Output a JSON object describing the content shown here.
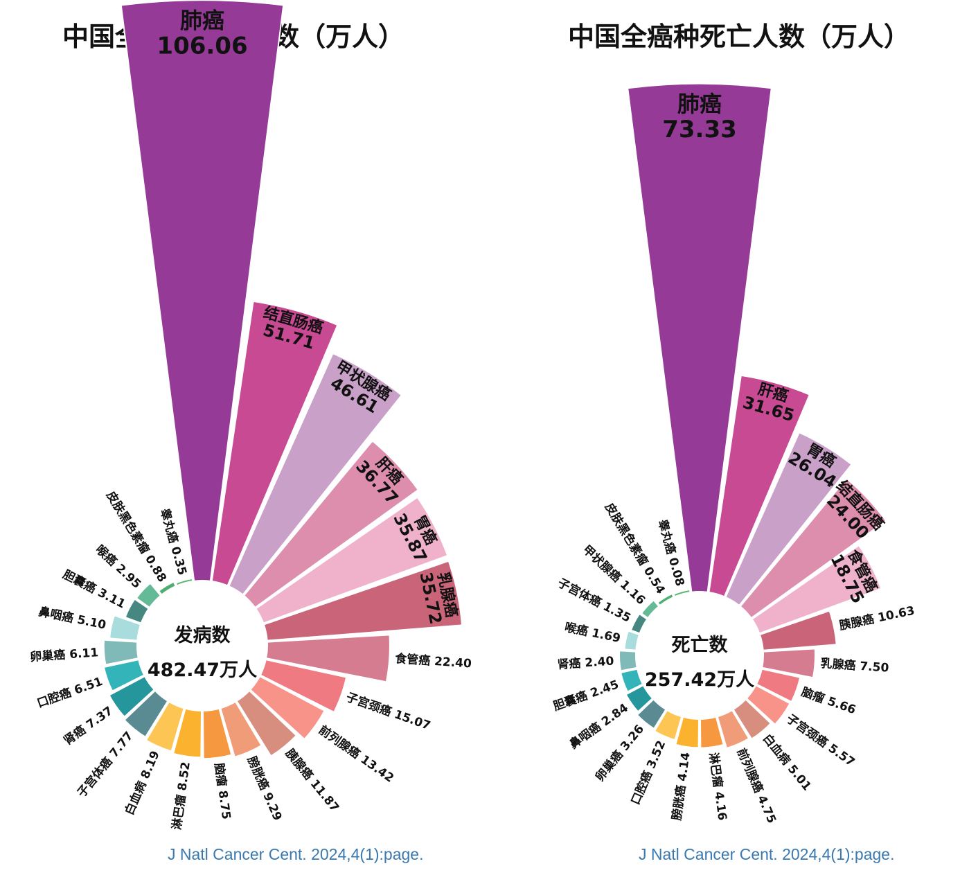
{
  "chart_data": [
    {
      "type": "polar-bar",
      "title": "中国全癌种发病人数（万人）",
      "center_label": "发病数",
      "center_total": "482.47万人",
      "source": "J Natl Cancer Cent. 2024,4(1):page.",
      "categories": [
        "肺癌",
        "结直肠癌",
        "甲状腺癌",
        "肝癌",
        "胃癌",
        "乳腺癌",
        "食管癌",
        "子宫颈癌",
        "前列腺癌",
        "胰腺癌",
        "膀胱癌",
        "脑瘤",
        "淋巴瘤",
        "白血病",
        "子宫体癌",
        "肾癌",
        "口腔癌",
        "卵巢癌",
        "鼻咽癌",
        "胆囊癌",
        "喉癌",
        "皮肤黑色素瘤",
        "睾丸癌"
      ],
      "values": [
        106.06,
        51.71,
        46.61,
        36.77,
        35.87,
        35.72,
        22.4,
        15.07,
        13.42,
        11.87,
        9.29,
        8.75,
        8.52,
        8.19,
        7.77,
        7.37,
        6.51,
        6.11,
        5.1,
        3.11,
        2.95,
        0.88,
        0.35
      ],
      "value_labels": [
        "106.06",
        "51.71",
        "46.61",
        "36.77",
        "35.87",
        "35.72",
        "22.40",
        "15.07",
        "13.42",
        "11.87",
        "9.29",
        "8.75",
        "8.52",
        "8.19",
        "7.77",
        "7.37",
        "6.51",
        "6.11",
        "5.10",
        "3.11",
        "2.95",
        "0.88",
        "0.35"
      ],
      "colors": [
        "#953a96",
        "#c84a92",
        "#c9a0c8",
        "#dd8eac",
        "#f0b2cb",
        "#c96479",
        "#d67c90",
        "#f07a82",
        "#f8938a",
        "#d78e7e",
        "#f19c78",
        "#f59840",
        "#fbb32f",
        "#fdc554",
        "#5a8b93",
        "#26969d",
        "#33b4b9",
        "#7fb9b8",
        "#a8dcdd",
        "#468782",
        "#64b996",
        "#4fae72",
        "#59b971"
      ]
    },
    {
      "type": "polar-bar",
      "title": "中国全癌种死亡人数（万人）",
      "center_label": "死亡数",
      "center_total": "257.42万人",
      "source": "J Natl Cancer Cent. 2024,4(1):page.",
      "categories": [
        "肺癌",
        "肝癌",
        "胃癌",
        "结直肠癌",
        "食管癌",
        "胰腺癌",
        "乳腺癌",
        "脑瘤",
        "子宫颈癌",
        "白血病",
        "前列腺癌",
        "淋巴瘤",
        "膀胱癌",
        "口腔癌",
        "卵巢癌",
        "鼻咽癌",
        "胆囊癌",
        "肾癌",
        "喉癌",
        "子宫体癌",
        "甲状腺癌",
        "皮肤黑色素瘤",
        "睾丸癌"
      ],
      "values": [
        73.33,
        31.65,
        26.04,
        24.0,
        18.75,
        10.63,
        7.5,
        5.66,
        5.57,
        5.01,
        4.75,
        4.16,
        4.14,
        3.52,
        3.26,
        2.84,
        2.45,
        2.4,
        1.69,
        1.35,
        1.16,
        0.54,
        0.08
      ],
      "value_labels": [
        "73.33",
        "31.65",
        "26.04",
        "24.00",
        "18.75",
        "10.63",
        "7.50",
        "5.66",
        "5.57",
        "5.01",
        "4.75",
        "4.16",
        "4.14",
        "3.52",
        "3.26",
        "2.84",
        "2.45",
        "2.40",
        "1.69",
        "1.35",
        "1.16",
        "0.54",
        "0.08"
      ],
      "colors": [
        "#953a96",
        "#c84a92",
        "#c9a0c8",
        "#dd8eac",
        "#f0b2cb",
        "#c96479",
        "#d67c90",
        "#f07a82",
        "#f8938a",
        "#d78e7e",
        "#f19c78",
        "#f59840",
        "#fbb32f",
        "#fdc554",
        "#5a8b93",
        "#26969d",
        "#33b4b9",
        "#7fb9b8",
        "#a8dcdd",
        "#468782",
        "#64b996",
        "#4fae72",
        "#59b971"
      ]
    }
  ]
}
